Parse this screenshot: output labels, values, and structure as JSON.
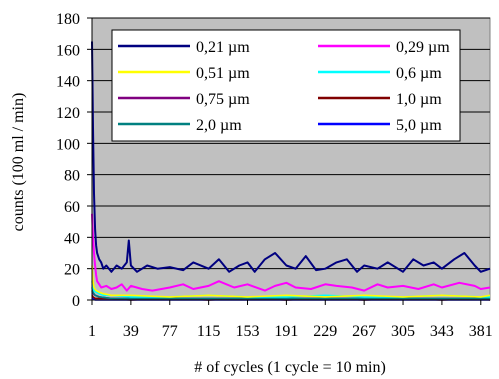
{
  "chart_data": {
    "type": "line",
    "title": "",
    "xlabel": "# of cycles (1 cycle = 10 min)",
    "ylabel": "counts (100 ml / min)",
    "ylim": [
      0,
      180
    ],
    "xlim": [
      1,
      390
    ],
    "yticks": [
      0,
      20,
      40,
      60,
      80,
      100,
      120,
      140,
      160,
      180
    ],
    "xticks": [
      1,
      39,
      77,
      115,
      153,
      191,
      229,
      267,
      305,
      343,
      381
    ],
    "grid": "horizontal",
    "plot_background": "#c0c0c0",
    "legend_position": "top-right",
    "series": [
      {
        "name": "0,21 µm",
        "color": "#000080",
        "x": [
          1,
          2,
          3,
          4,
          5,
          6,
          8,
          10,
          12,
          15,
          20,
          25,
          30,
          35,
          37,
          39,
          45,
          55,
          65,
          77,
          90,
          100,
          115,
          125,
          135,
          145,
          153,
          160,
          170,
          180,
          191,
          200,
          210,
          220,
          229,
          240,
          250,
          260,
          267,
          280,
          290,
          305,
          315,
          325,
          335,
          343,
          355,
          365,
          375,
          381,
          390
        ],
        "values": [
          165,
          110,
          68,
          45,
          35,
          30,
          26,
          24,
          20,
          22,
          18,
          22,
          20,
          24,
          38,
          22,
          18,
          22,
          20,
          21,
          19,
          24,
          20,
          26,
          18,
          22,
          24,
          18,
          26,
          30,
          22,
          20,
          28,
          19,
          20,
          24,
          26,
          18,
          22,
          20,
          24,
          18,
          26,
          22,
          24,
          20,
          26,
          30,
          22,
          18,
          20
        ]
      },
      {
        "name": "0,29 µm",
        "color": "#ff00ff",
        "x": [
          1,
          2,
          3,
          4,
          5,
          6,
          8,
          10,
          15,
          20,
          25,
          30,
          35,
          39,
          50,
          60,
          77,
          90,
          100,
          115,
          125,
          140,
          153,
          170,
          180,
          191,
          200,
          215,
          229,
          240,
          255,
          267,
          280,
          290,
          305,
          320,
          335,
          343,
          360,
          375,
          381,
          390
        ],
        "values": [
          55,
          40,
          30,
          22,
          16,
          12,
          10,
          8,
          9,
          7,
          8,
          10,
          6,
          9,
          7,
          6,
          8,
          10,
          7,
          9,
          12,
          8,
          10,
          6,
          9,
          11,
          8,
          7,
          10,
          9,
          8,
          6,
          10,
          8,
          9,
          7,
          10,
          8,
          11,
          9,
          7,
          8
        ]
      },
      {
        "name": "0,51 µm",
        "color": "#ffff00",
        "x": [
          1,
          2,
          3,
          5,
          8,
          12,
          20,
          39,
          77,
          115,
          153,
          191,
          229,
          267,
          305,
          343,
          381,
          390
        ],
        "values": [
          22,
          12,
          8,
          6,
          5,
          4,
          3,
          3,
          2,
          3,
          2,
          3,
          2,
          3,
          2,
          3,
          2,
          3
        ]
      },
      {
        "name": "0,6 µm",
        "color": "#00ffff",
        "x": [
          1,
          2,
          3,
          5,
          8,
          12,
          20,
          39,
          77,
          115,
          153,
          191,
          229,
          267,
          305,
          343,
          381,
          390
        ],
        "values": [
          12,
          8,
          6,
          5,
          4,
          3,
          3,
          2,
          2,
          3,
          2,
          2,
          3,
          2,
          2,
          3,
          2,
          2
        ]
      },
      {
        "name": "0,75 µm",
        "color": "#800080",
        "x": [
          1,
          2,
          4,
          8,
          20,
          39,
          77,
          115,
          153,
          191,
          229,
          267,
          305,
          343,
          381,
          390
        ],
        "values": [
          6,
          4,
          3,
          2,
          1,
          1,
          1,
          1,
          1,
          1,
          1,
          1,
          1,
          1,
          1,
          1
        ]
      },
      {
        "name": "1,0 µm",
        "color": "#800000",
        "x": [
          1,
          2,
          4,
          8,
          20,
          39,
          77,
          115,
          153,
          191,
          229,
          267,
          305,
          343,
          381,
          390
        ],
        "values": [
          3,
          2,
          1,
          1,
          1,
          0,
          1,
          0,
          1,
          0,
          1,
          0,
          1,
          0,
          1,
          0
        ]
      },
      {
        "name": "2,0 µm",
        "color": "#008080",
        "x": [
          1,
          2,
          4,
          8,
          20,
          39,
          77,
          115,
          153,
          191,
          229,
          267,
          305,
          343,
          381,
          390
        ],
        "values": [
          8,
          5,
          3,
          2,
          1,
          1,
          1,
          1,
          1,
          1,
          1,
          1,
          1,
          1,
          1,
          1
        ]
      },
      {
        "name": "5,0 µm",
        "color": "#0000ff",
        "x": [
          1,
          2,
          4,
          8,
          20,
          39,
          77,
          115,
          153,
          191,
          229,
          267,
          305,
          343,
          381,
          390
        ],
        "values": [
          1,
          1,
          0,
          0,
          0,
          0,
          0,
          0,
          0,
          0,
          0,
          0,
          0,
          0,
          0,
          0
        ]
      }
    ]
  }
}
